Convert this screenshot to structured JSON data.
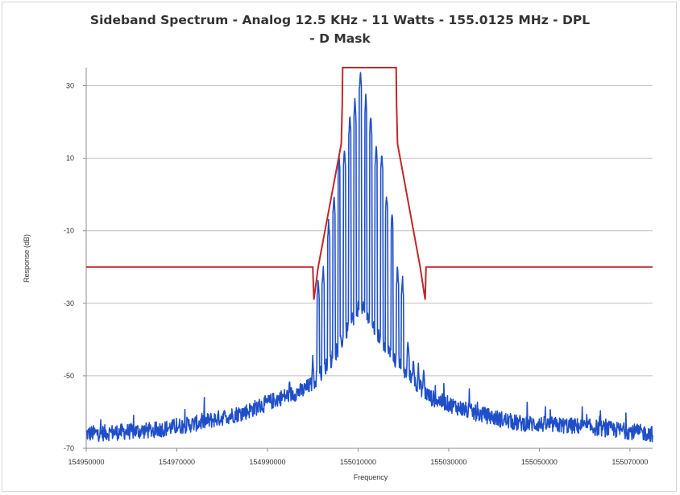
{
  "chart_data": {
    "type": "line",
    "title_line1": "Sideband Spectrum  - Analog 12.5 KHz - 11 Watts - 155.0125 MHz - DPL",
    "title_line2": "- D Mask",
    "xlabel": "Frequency",
    "ylabel": "Response (dB)",
    "xlim": [
      154950000,
      155075000
    ],
    "ylim": [
      -70,
      35
    ],
    "x_ticks": [
      154950000,
      154970000,
      154990000,
      155010000,
      155030000,
      155050000,
      155070000
    ],
    "x_tick_labels": [
      "154950000",
      "154970000",
      "154990000",
      "155010000",
      "155030000",
      "155050000",
      "155070000"
    ],
    "y_ticks": [
      30,
      10,
      -10,
      -30,
      -50,
      -70
    ],
    "y_tick_labels": [
      "30",
      "10",
      "-10",
      "-30",
      "-50",
      "-70"
    ],
    "grid": "horizontal",
    "legend": "none",
    "series": [
      {
        "color": "#c0282a",
        "x": [
          154950000,
          155000000,
          155000250,
          155001200,
          155006300,
          155006500,
          155006600,
          155018400,
          155018500,
          155018700,
          155023700,
          155024800,
          155025000,
          155075000
        ],
        "y": [
          -20,
          -20,
          -29,
          -20,
          14,
          25,
          35,
          35,
          25,
          14,
          -20,
          -29,
          -20,
          -20
        ]
      },
      {
        "color": "#1f4fc8",
        "peaks": [
          {
            "x": 155000000,
            "y": -45
          },
          {
            "x": 155001200,
            "y": -23
          },
          {
            "x": 155002300,
            "y": -20
          },
          {
            "x": 155003500,
            "y": -7
          },
          {
            "x": 155004700,
            "y": 0
          },
          {
            "x": 155005800,
            "y": 10
          },
          {
            "x": 155007000,
            "y": 13
          },
          {
            "x": 155008200,
            "y": 22
          },
          {
            "x": 155009300,
            "y": 26
          },
          {
            "x": 155010500,
            "y": 34
          },
          {
            "x": 155011700,
            "y": 27
          },
          {
            "x": 155012800,
            "y": 22
          },
          {
            "x": 155014000,
            "y": 14
          },
          {
            "x": 155015200,
            "y": 12
          },
          {
            "x": 155016300,
            "y": 0
          },
          {
            "x": 155017500,
            "y": -5
          },
          {
            "x": 155018700,
            "y": -20
          },
          {
            "x": 155019800,
            "y": -23
          },
          {
            "x": 155021000,
            "y": -40
          },
          {
            "x": 155022200,
            "y": -45
          },
          {
            "x": 155023300,
            "y": -47
          },
          {
            "x": 155024500,
            "y": -48
          }
        ],
        "noise_floor": [
          {
            "x": 154950000,
            "y": -66
          },
          {
            "x": 154965000,
            "y": -65
          },
          {
            "x": 154975000,
            "y": -63
          },
          {
            "x": 154985000,
            "y": -60
          },
          {
            "x": 154993000,
            "y": -56
          },
          {
            "x": 154998000,
            "y": -54
          },
          {
            "x": 155000000,
            "y": -52
          },
          {
            "x": 155005000,
            "y": -44
          },
          {
            "x": 155010500,
            "y": -30
          },
          {
            "x": 155016000,
            "y": -42
          },
          {
            "x": 155021000,
            "y": -50
          },
          {
            "x": 155026000,
            "y": -56
          },
          {
            "x": 155035000,
            "y": -60
          },
          {
            "x": 155045000,
            "y": -63
          },
          {
            "x": 155060000,
            "y": -64
          },
          {
            "x": 155075000,
            "y": -66
          }
        ]
      }
    ]
  }
}
